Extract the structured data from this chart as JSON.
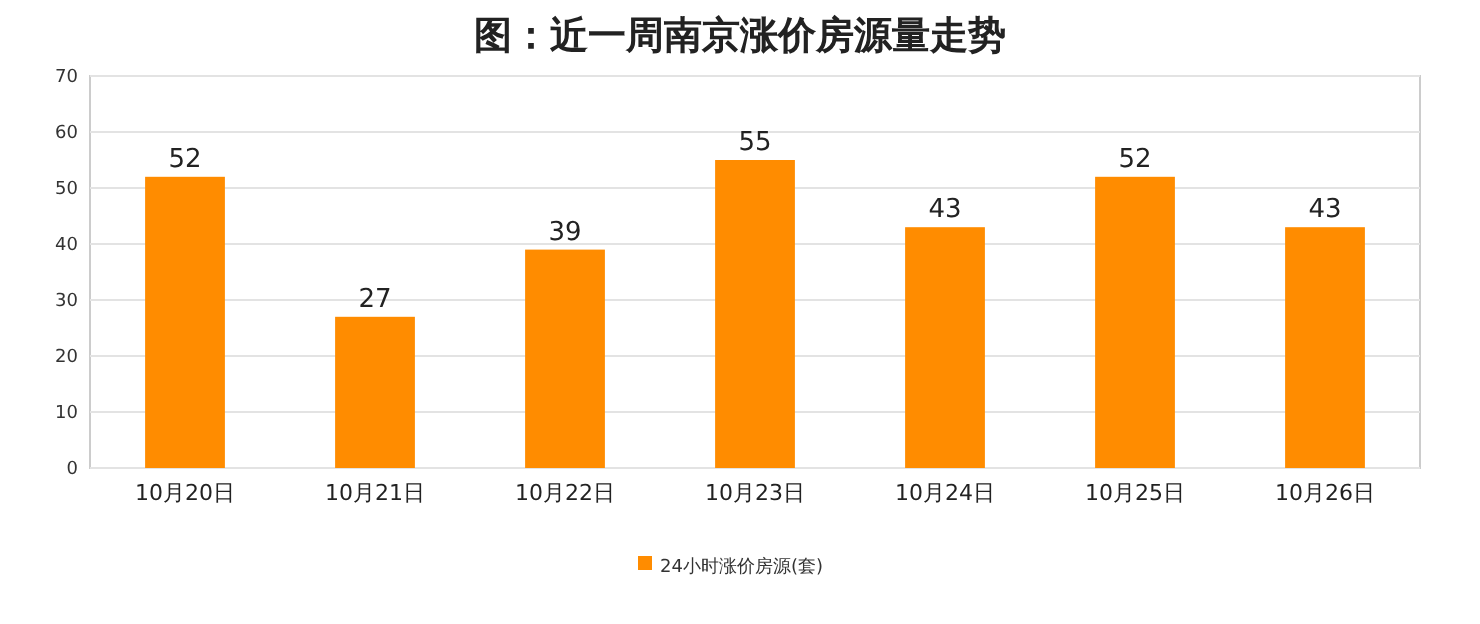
{
  "chart_data": {
    "type": "bar",
    "title": "图：近一周南京涨价房源量走势",
    "categories": [
      "10月20日",
      "10月21日",
      "10月22日",
      "10月23日",
      "10月24日",
      "10月25日",
      "10月26日"
    ],
    "series": [
      {
        "name": "24小时涨价房源(套)",
        "color": "#ff8c00",
        "values": [
          52,
          27,
          39,
          55,
          43,
          52,
          43
        ]
      }
    ],
    "ylim": [
      0,
      70
    ],
    "yticks": [
      0,
      10,
      20,
      30,
      40,
      50,
      60,
      70
    ],
    "grid": "y",
    "legend": "bottom",
    "data_labels": true
  }
}
